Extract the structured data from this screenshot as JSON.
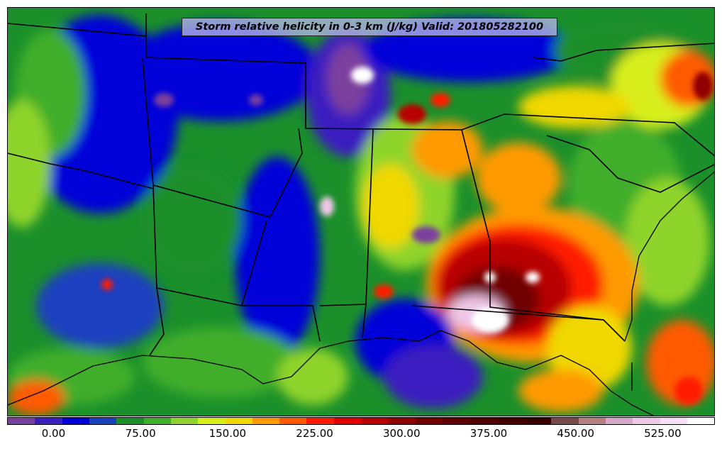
{
  "title": "Storm relative helicity in 0-3 km (J/kg) Valid: 201805282100",
  "colorbar": {
    "colors": [
      "#7b3f9e",
      "#3a1fbf",
      "#0000d8",
      "#1a40c0",
      "#1a8f2a",
      "#3fae2a",
      "#8fd42a",
      "#d8ee1a",
      "#f0d800",
      "#ff9a00",
      "#ff5a00",
      "#ff1a00",
      "#e00000",
      "#b80000",
      "#900000",
      "#700000",
      "#600000",
      "#500000",
      "#440000",
      "#380000",
      "#7a4a4a",
      "#b48080",
      "#d9a8c8",
      "#eec8e8",
      "#f8e0f8",
      "#ffffff"
    ],
    "tick_labels": [
      "0.00",
      "75.00",
      "150.00",
      "225.00",
      "300.00",
      "375.00",
      "450.00",
      "525.00"
    ],
    "tick_values": [
      0,
      75,
      150,
      225,
      300,
      375,
      450,
      525
    ],
    "vmin": -40,
    "vmax": 570
  }
}
